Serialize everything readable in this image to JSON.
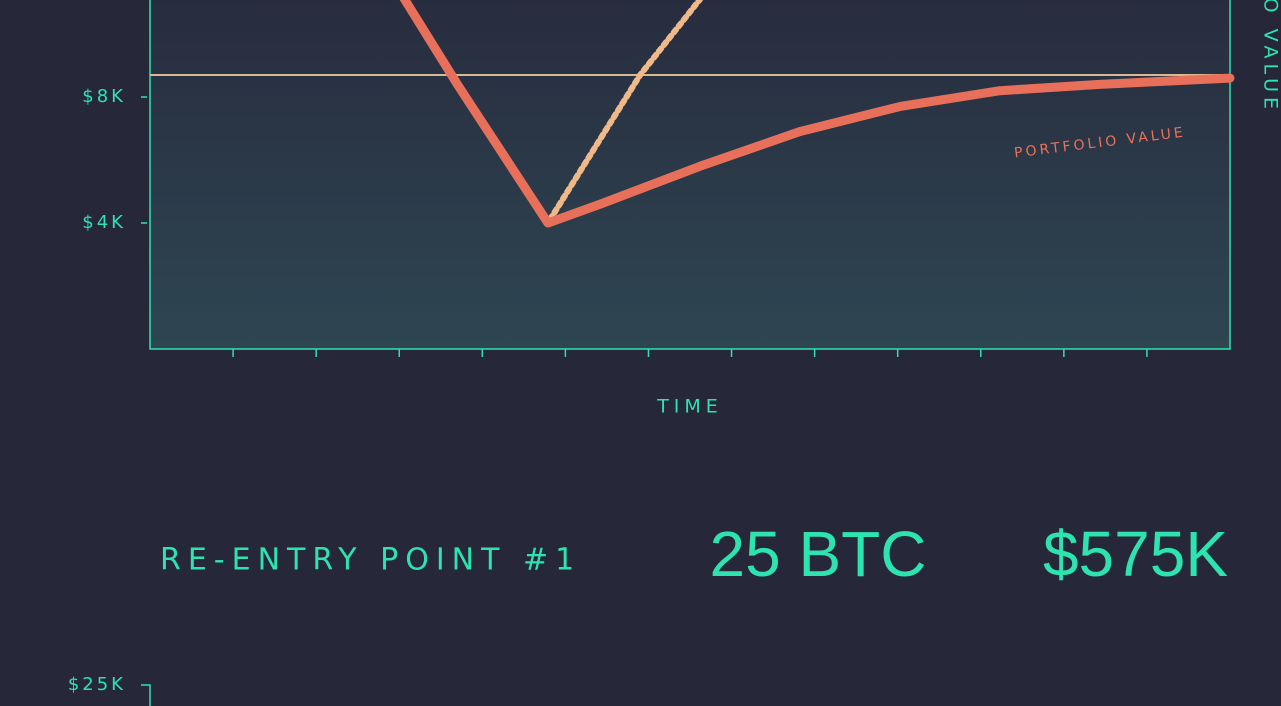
{
  "chart_data": [
    {
      "type": "line",
      "x_label": "TIME",
      "y2_label": "O VALUE",
      "annotation": "PORTFOLIO VALUE",
      "xlim": [
        0,
        13
      ],
      "xticks": [
        1,
        2,
        3,
        4,
        5,
        6,
        7,
        8,
        9,
        10,
        11,
        12
      ],
      "ylim": [
        0,
        12
      ],
      "yticks": [
        {
          "value": 4,
          "label": "$4K"
        },
        {
          "value": 8,
          "label": "$8K"
        }
      ],
      "reference_line": 8.7,
      "reference_color": "#d9b894",
      "series": [
        {
          "color": "#e8705a",
          "style": "solid",
          "x": [
            2.9,
            3.7,
            4.79,
            5.42,
            6.62,
            7.82,
            9.03,
            10.23,
            11.43,
            13
          ],
          "values": [
            11.8,
            8.4,
            4,
            4.6,
            5.8,
            6.9,
            7.7,
            8.2,
            8.4,
            8.6
          ]
        },
        {
          "color": "#f0b98a",
          "style": "dotted",
          "x": [
            2.9,
            3.7,
            4.79,
            5.9,
            6.62
          ],
          "values": [
            11.8,
            8.4,
            4,
            8.7,
            11.1
          ]
        }
      ]
    },
    {
      "type": "line",
      "yticks": [
        {
          "value": 25,
          "label": "$25K"
        }
      ]
    }
  ],
  "reentry": {
    "label": "RE-ENTRY POINT #1",
    "btc": "25 BTC",
    "value": "$575K"
  }
}
